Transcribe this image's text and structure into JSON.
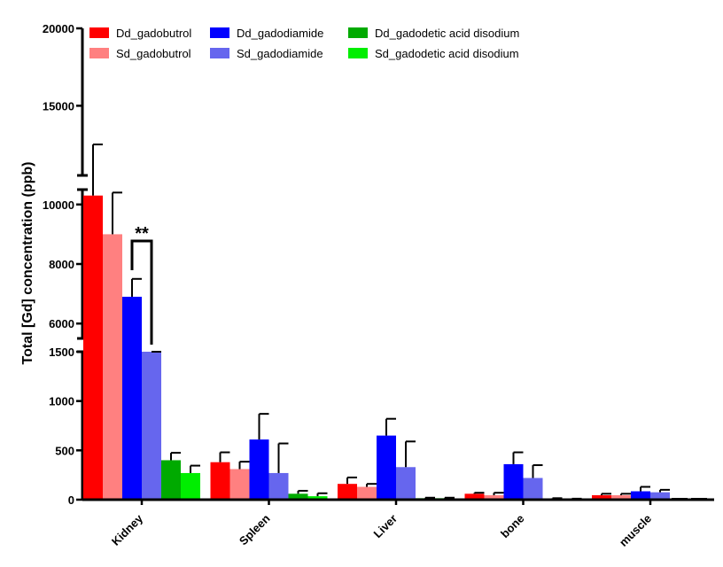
{
  "chart_data": {
    "type": "bar",
    "title": "",
    "xlabel": "",
    "ylabel": "Total [Gd] concentration (ppb)",
    "y_axis": {
      "broken": true,
      "segments": [
        {
          "range": [
            0,
            1500
          ],
          "ticks": [
            "0",
            "500",
            "1000",
            "1500"
          ]
        },
        {
          "range": [
            5500,
            10500
          ],
          "ticks": [
            "6000",
            "8000",
            "10000"
          ]
        },
        {
          "range": [
            10500,
            20000
          ],
          "ticks": [
            "15000",
            "20000"
          ]
        }
      ]
    },
    "categories": [
      "Kidney",
      "Spleen",
      "Liver",
      "bone",
      "muscle"
    ],
    "series": [
      {
        "name": "Dd_gadobutrol",
        "color": "#ff0000",
        "values": [
          10300,
          380,
          160,
          60,
          45
        ],
        "errors": [
          2200,
          100,
          65,
          10,
          15
        ]
      },
      {
        "name": "Sd_gadobutrol",
        "color": "#ff8080",
        "values": [
          9000,
          310,
          130,
          45,
          45
        ],
        "errors": [
          1400,
          75,
          30,
          25,
          15
        ]
      },
      {
        "name": "Dd_gadodiamide",
        "color": "#0000ff",
        "values": [
          6900,
          610,
          650,
          360,
          85
        ],
        "errors": [
          600,
          260,
          170,
          120,
          45
        ]
      },
      {
        "name": "Sd_gadodiamide",
        "color": "#6666ee",
        "values": [
          1540,
          270,
          330,
          220,
          75
        ],
        "errors": [
          0,
          300,
          260,
          130,
          25
        ]
      },
      {
        "name": "Dd_gadodetic acid disodium",
        "color": "#00aa00",
        "values": [
          400,
          60,
          15,
          10,
          0
        ],
        "errors": [
          75,
          30,
          5,
          5,
          0
        ]
      },
      {
        "name": "Sd_gadodetic acid disodium",
        "color": "#00ee00",
        "values": [
          270,
          35,
          15,
          5,
          0
        ],
        "errors": [
          75,
          30,
          5,
          5,
          0
        ]
      }
    ],
    "annotations": [
      {
        "text": "**",
        "between": [
          "Dd_gadodiamide",
          "Sd_gadodiamide"
        ],
        "category": "Kidney"
      }
    ],
    "legend": {
      "position": "top",
      "columns": 3
    },
    "grid": false
  }
}
